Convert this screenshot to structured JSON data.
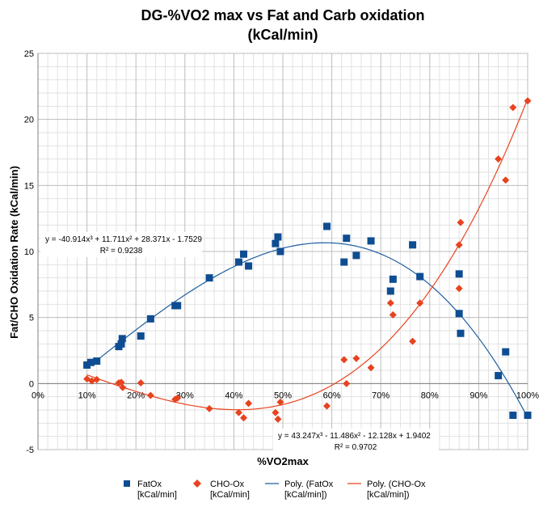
{
  "chart_data": {
    "type": "scatter",
    "title_lines": [
      "DG-%VO2 max vs Fat and Carb oxidation",
      "(kCal/min)"
    ],
    "xlabel": "%VO2max",
    "ylabel": "Fat/CHO Oxidation Rate (kCal/min)",
    "xlim": [
      0,
      100
    ],
    "ylim": [
      -5,
      25
    ],
    "x_ticks": [
      0,
      10,
      20,
      30,
      40,
      50,
      60,
      70,
      80,
      90,
      100
    ],
    "x_tick_labels": [
      "0%",
      "10%",
      "20%",
      "30%",
      "40%",
      "50%",
      "60%",
      "70%",
      "80%",
      "90%",
      "100%"
    ],
    "y_ticks": [
      -5,
      0,
      5,
      10,
      15,
      20,
      25
    ],
    "y_tick_labels": [
      "-5",
      "0",
      "5",
      "10",
      "15",
      "20",
      "25"
    ],
    "grid": true,
    "legend_position": "bottom",
    "series": [
      {
        "name": "FatOx [kCal/min]",
        "legend_lines": [
          "FatOx",
          "[kCal/min]"
        ],
        "kind": "scatter",
        "marker": "square",
        "color": "#0E4D92",
        "points": [
          [
            10,
            1.4
          ],
          [
            10.8,
            1.6
          ],
          [
            12,
            1.7
          ],
          [
            16.5,
            2.8
          ],
          [
            17,
            3.0
          ],
          [
            17.2,
            3.4
          ],
          [
            21,
            3.6
          ],
          [
            23,
            4.9
          ],
          [
            28,
            5.9
          ],
          [
            28.5,
            5.9
          ],
          [
            35,
            8.0
          ],
          [
            41,
            9.2
          ],
          [
            42,
            9.8
          ],
          [
            43,
            8.9
          ],
          [
            48.5,
            10.6
          ],
          [
            49,
            11.1
          ],
          [
            49.5,
            10.0
          ],
          [
            59,
            11.9
          ],
          [
            62.5,
            9.2
          ],
          [
            63,
            11.0
          ],
          [
            65,
            9.7
          ],
          [
            68,
            10.8
          ],
          [
            72,
            7.0
          ],
          [
            72.5,
            7.9
          ],
          [
            76.5,
            10.5
          ],
          [
            78,
            8.1
          ],
          [
            86,
            8.3
          ],
          [
            86,
            5.3
          ],
          [
            86.3,
            3.8
          ],
          [
            94,
            0.6
          ],
          [
            95.5,
            2.4
          ],
          [
            97,
            -2.4
          ],
          [
            100,
            -2.4
          ]
        ]
      },
      {
        "name": "CHO-Ox [kCal/min]",
        "legend_lines": [
          "CHO-Ox",
          "[kCal/min]"
        ],
        "kind": "scatter",
        "marker": "diamond",
        "color": "#E8431F",
        "points": [
          [
            10,
            0.35
          ],
          [
            11,
            0.2
          ],
          [
            12,
            0.3
          ],
          [
            16.5,
            0.05
          ],
          [
            17,
            0.1
          ],
          [
            17.3,
            -0.3
          ],
          [
            21,
            0.05
          ],
          [
            23,
            -0.9
          ],
          [
            28,
            -1.2
          ],
          [
            28.5,
            -1.1
          ],
          [
            35,
            -1.9
          ],
          [
            41,
            -2.2
          ],
          [
            42,
            -2.6
          ],
          [
            43,
            -1.5
          ],
          [
            48.5,
            -2.2
          ],
          [
            49,
            -2.7
          ],
          [
            49.5,
            -1.4
          ],
          [
            59,
            -1.7
          ],
          [
            62.5,
            1.8
          ],
          [
            63,
            0.0
          ],
          [
            65,
            1.9
          ],
          [
            68,
            1.2
          ],
          [
            72,
            6.1
          ],
          [
            72.5,
            5.2
          ],
          [
            76.5,
            3.2
          ],
          [
            78,
            6.1
          ],
          [
            86,
            10.5
          ],
          [
            86,
            7.2
          ],
          [
            86.3,
            12.2
          ],
          [
            94,
            17.0
          ],
          [
            95.5,
            15.4
          ],
          [
            97,
            20.9
          ],
          [
            100,
            21.4
          ]
        ]
      },
      {
        "name": "Poly. (FatOx [kCal/min])",
        "legend_lines": [
          "Poly.  (FatOx",
          "[kCal/min])"
        ],
        "kind": "trendline",
        "color": "#1F5FA0",
        "coefficients": [
          -40.914,
          11.711,
          28.371,
          -1.7529
        ],
        "x_range": [
          0.1,
          1.0
        ],
        "equation": "y = -40.914x³ + 11.711x² + 28.371x - 1.7529",
        "r_squared": "R² = 0.9238"
      },
      {
        "name": "Poly. (CHO-Ox [kCal/min])",
        "legend_lines": [
          "Poly.  (CHO-Ox",
          "[kCal/min])"
        ],
        "kind": "trendline",
        "color": "#E8431F",
        "coefficients": [
          43.247,
          -11.486,
          -12.128,
          1.9402
        ],
        "x_range": [
          0.1,
          1.0
        ],
        "equation": "y = 43.247x³ - 11.486x² - 12.128x + 1.9402",
        "r_squared": "R² = 0.9702"
      }
    ]
  }
}
